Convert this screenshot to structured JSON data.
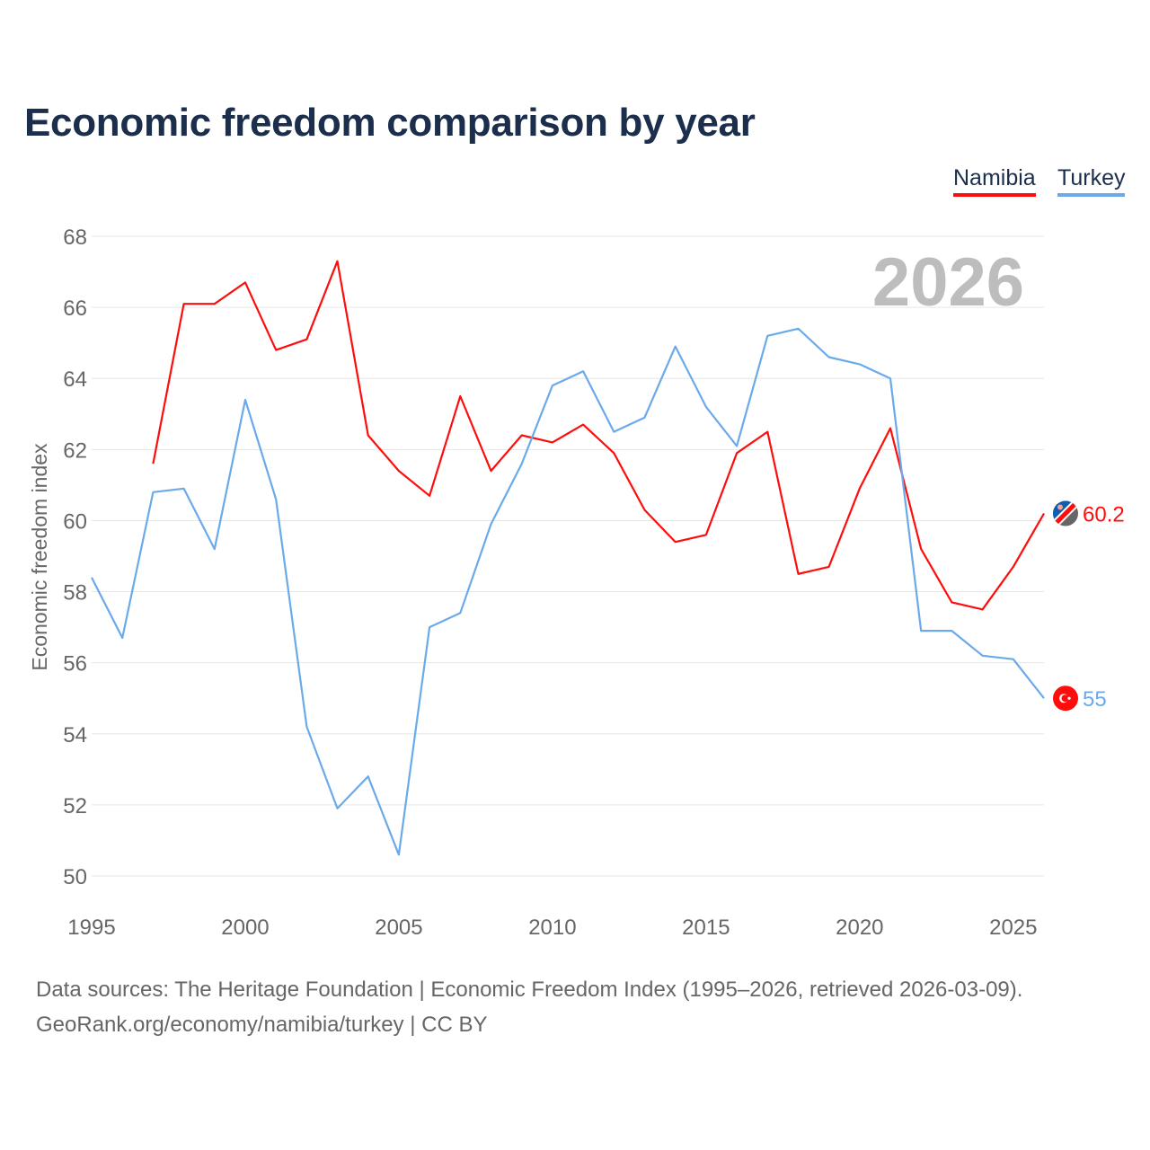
{
  "chart_data": {
    "type": "line",
    "title": "Economic freedom comparison by year",
    "xlabel": "",
    "ylabel": "Economic freedom index",
    "xlim": [
      1995,
      2026
    ],
    "ylim": [
      50,
      68
    ],
    "yticks": [
      50,
      52,
      54,
      56,
      58,
      60,
      62,
      64,
      66,
      68
    ],
    "xticks": [
      1995,
      2000,
      2005,
      2010,
      2015,
      2020,
      2025
    ],
    "grid": true,
    "legend_placement": "top-right",
    "year_watermark": "2026",
    "series": [
      {
        "name": "Namibia",
        "color": "#ff0d0d",
        "end_label": "60.2",
        "x": [
          1997,
          1998,
          1999,
          2000,
          2001,
          2002,
          2003,
          2004,
          2005,
          2006,
          2007,
          2008,
          2009,
          2010,
          2011,
          2012,
          2013,
          2014,
          2015,
          2016,
          2017,
          2018,
          2019,
          2020,
          2021,
          2022,
          2023,
          2024,
          2025,
          2026
        ],
        "values": [
          61.6,
          66.1,
          66.1,
          66.7,
          64.8,
          65.1,
          67.3,
          62.4,
          61.4,
          60.7,
          63.5,
          61.4,
          62.4,
          62.2,
          62.7,
          61.9,
          60.3,
          59.4,
          59.6,
          61.9,
          62.5,
          58.5,
          58.7,
          60.9,
          62.6,
          59.2,
          57.7,
          57.5,
          58.7,
          60.2
        ]
      },
      {
        "name": "Turkey",
        "color": "#6aaaea",
        "end_label": "55",
        "x": [
          1995,
          1996,
          1997,
          1998,
          1999,
          2000,
          2001,
          2002,
          2003,
          2004,
          2005,
          2006,
          2007,
          2008,
          2009,
          2010,
          2011,
          2012,
          2013,
          2014,
          2015,
          2016,
          2017,
          2018,
          2019,
          2020,
          2021,
          2022,
          2023,
          2024,
          2025,
          2026
        ],
        "values": [
          58.4,
          56.7,
          60.8,
          60.9,
          59.2,
          63.4,
          60.6,
          54.2,
          51.9,
          52.8,
          50.6,
          57.0,
          57.4,
          59.9,
          61.6,
          63.8,
          64.2,
          62.5,
          62.9,
          64.9,
          63.2,
          62.1,
          65.2,
          65.4,
          64.6,
          64.4,
          64.0,
          56.9,
          56.9,
          56.2,
          56.1,
          55.0
        ]
      }
    ]
  },
  "footer": {
    "line1": "Data sources: The Heritage Foundation | Economic Freedom Index (1995–2026, retrieved 2026-03-09).",
    "line2": "GeoRank.org/economy/namibia/turkey | CC BY"
  }
}
